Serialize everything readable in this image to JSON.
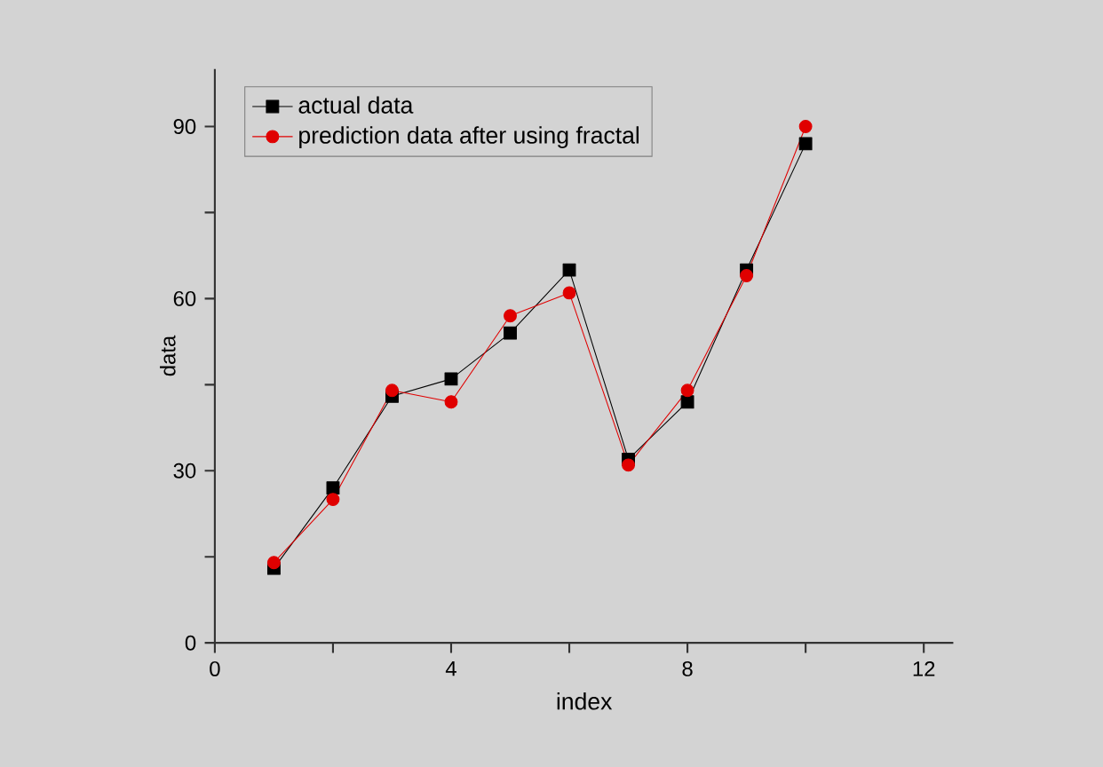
{
  "chart_data": {
    "type": "line",
    "xlabel": "index",
    "ylabel": "data",
    "x": [
      1,
      2,
      3,
      4,
      5,
      6,
      7,
      8,
      9,
      10
    ],
    "series": [
      {
        "name": "actual data",
        "color": "#000000",
        "marker": "square",
        "values": [
          13,
          27,
          43,
          46,
          54,
          65,
          32,
          42,
          65,
          87
        ]
      },
      {
        "name": "prediction data after using fractal",
        "color": "#e00000",
        "marker": "circle",
        "values": [
          14,
          25,
          44,
          42,
          57,
          61,
          31,
          44,
          64,
          90
        ]
      }
    ],
    "xlim": [
      0,
      12.5
    ],
    "ylim": [
      0,
      100
    ],
    "xticks": [
      0,
      {
        "value": 2,
        "label": null
      },
      4,
      {
        "value": 6,
        "label": null
      },
      8,
      {
        "value": 10,
        "label": null
      },
      12
    ],
    "yticks": [
      0,
      {
        "value": 15,
        "label": null
      },
      30,
      {
        "value": 45,
        "label": null
      },
      60,
      {
        "value": 75,
        "label": null
      },
      90
    ],
    "legend": "top left",
    "grid": false,
    "line_style": "solid"
  }
}
